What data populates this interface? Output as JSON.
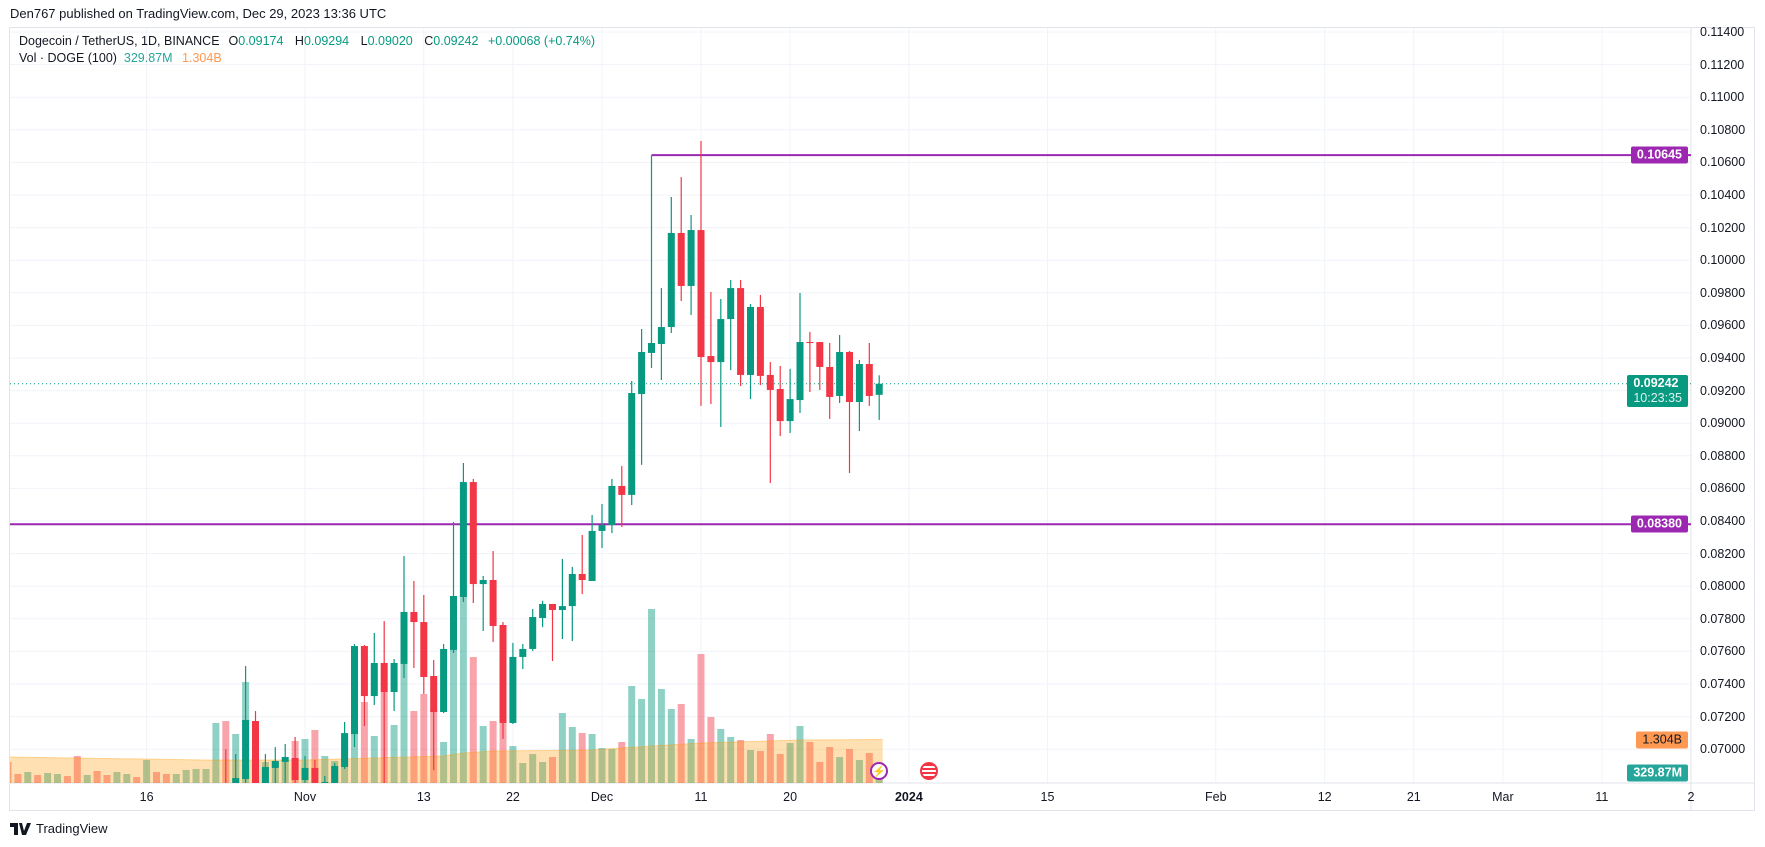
{
  "publisher_line": "Den767 published on TradingView.com, Dec 29, 2023 13:36 UTC",
  "legend": {
    "symbol": "Dogecoin / TetherUS, 1D, BINANCE",
    "o_key": "O",
    "o": "0.09174",
    "h_key": "H",
    "h": "0.09294",
    "l_key": "L",
    "l": "0.09020",
    "c_key": "C",
    "c": "0.09242",
    "change": "+0.00068 (+0.74%)",
    "vol_label": "Vol · DOGE (100)",
    "vol_value": "329.87M",
    "vol_ma_value": "1.304B"
  },
  "price_tags": {
    "high_line": "0.10645",
    "low_line": "0.08380",
    "last_price": "0.09242",
    "countdown": "10:23:35",
    "vol_ma": "1.304B",
    "vol": "329.87M"
  },
  "footer": {
    "brand": "TradingView"
  },
  "colors": {
    "up": "#089981",
    "down": "#f23645",
    "level_line": "#9c27b0",
    "vol_ma": "#ff9850",
    "grid": "#f0f3fa"
  },
  "chart_data": {
    "type": "candlestick",
    "symbol": "DOGEUSDT",
    "interval": "1D",
    "ylim": [
      0.0675,
      0.1142
    ],
    "grid": true,
    "y_ticks": [
      "0.11400",
      "0.11200",
      "0.11000",
      "0.10800",
      "0.10600",
      "0.10400",
      "0.10200",
      "0.10000",
      "0.09800",
      "0.09600",
      "0.09400",
      "0.09200",
      "0.09000",
      "0.08800",
      "0.08600",
      "0.08400",
      "0.08200",
      "0.08000",
      "0.07800",
      "0.07600",
      "0.07400",
      "0.07200",
      "0.07000"
    ],
    "x_ticks": [
      {
        "label": "16",
        "date": "2023-10-16"
      },
      {
        "label": "Nov",
        "date": "2023-11-01"
      },
      {
        "label": "13",
        "date": "2023-11-13"
      },
      {
        "label": "22",
        "date": "2023-11-22"
      },
      {
        "label": "Dec",
        "date": "2023-12-01"
      },
      {
        "label": "11",
        "date": "2023-12-11"
      },
      {
        "label": "20",
        "date": "2023-12-20"
      },
      {
        "label": "2024",
        "date": "2024-01-01",
        "bold": true
      },
      {
        "label": "15",
        "date": "2024-01-15"
      },
      {
        "label": "Feb",
        "date": "2024-02-01"
      },
      {
        "label": "12",
        "date": "2024-02-12"
      },
      {
        "label": "21",
        "date": "2024-02-21"
      },
      {
        "label": "Mar",
        "date": "2024-03-01"
      },
      {
        "label": "11",
        "date": "2024-03-11"
      },
      {
        "label": "2",
        "date": "2024-03-20"
      }
    ],
    "horizontal_levels": [
      {
        "price": 0.10645,
        "from": "2023-12-06"
      },
      {
        "price": 0.0838,
        "from": "2023-10-01"
      }
    ],
    "last_price": 0.09242,
    "candles_columns": [
      "date",
      "open",
      "high",
      "low",
      "close"
    ],
    "candles": [
      [
        "2023-10-24",
        0.0678,
        0.07,
        0.0668,
        0.0672
      ],
      [
        "2023-10-25",
        0.0672,
        0.0697,
        0.0668,
        0.06823
      ],
      [
        "2023-10-26",
        0.06817,
        0.0751,
        0.0675,
        0.07179
      ],
      [
        "2023-10-27",
        0.07173,
        0.07234,
        0.0665,
        0.0672
      ],
      [
        "2023-10-28",
        0.0672,
        0.0697,
        0.0668,
        0.06891
      ],
      [
        "2023-10-29",
        0.06885,
        0.07013,
        0.0679,
        0.06928
      ],
      [
        "2023-10-30",
        0.06922,
        0.07032,
        0.0679,
        0.06952
      ],
      [
        "2023-10-31",
        0.06946,
        0.07075,
        0.0676,
        0.06811
      ],
      [
        "2023-11-01",
        0.06811,
        0.06958,
        0.06793,
        0.06885
      ],
      [
        "2023-11-02",
        0.06885,
        0.06934,
        0.0675,
        0.06793
      ],
      [
        "2023-11-03",
        0.06793,
        0.06836,
        0.0675,
        0.06799
      ],
      [
        "2023-11-04",
        0.06793,
        0.06916,
        0.0676,
        0.06897
      ],
      [
        "2023-11-05",
        0.06891,
        0.07167,
        0.06879,
        0.07099
      ],
      [
        "2023-11-06",
        0.07093,
        0.07645,
        0.07013,
        0.07633
      ],
      [
        "2023-11-07",
        0.07633,
        0.07639,
        0.07142,
        0.07326
      ],
      [
        "2023-11-08",
        0.07326,
        0.07713,
        0.07271,
        0.07529
      ],
      [
        "2023-11-09",
        0.07529,
        0.07786,
        0.0675,
        0.07351
      ],
      [
        "2023-11-10",
        0.07351,
        0.07553,
        0.07234,
        0.07529
      ],
      [
        "2023-11-11",
        0.07523,
        0.08185,
        0.07437,
        0.07842
      ],
      [
        "2023-11-12",
        0.07842,
        0.08032,
        0.07498,
        0.0778
      ],
      [
        "2023-11-13",
        0.0778,
        0.07946,
        0.07339,
        0.07443
      ],
      [
        "2023-11-14",
        0.07449,
        0.07547,
        0.06872,
        0.07228
      ],
      [
        "2023-11-15",
        0.07228,
        0.07645,
        0.07222,
        0.07615
      ],
      [
        "2023-11-16",
        0.07609,
        0.08394,
        0.0759,
        0.0794
      ],
      [
        "2023-11-17",
        0.07934,
        0.08756,
        0.07903,
        0.08639
      ],
      [
        "2023-11-18",
        0.08639,
        0.08658,
        0.07897,
        0.08013
      ],
      [
        "2023-11-19",
        0.08013,
        0.08063,
        0.07725,
        0.08038
      ],
      [
        "2023-11-20",
        0.08038,
        0.08216,
        0.07658,
        0.07756
      ],
      [
        "2023-11-21",
        0.07762,
        0.0778,
        0.07063,
        0.07161
      ],
      [
        "2023-11-22",
        0.07161,
        0.07652,
        0.07155,
        0.07566
      ],
      [
        "2023-11-23",
        0.07566,
        0.07645,
        0.07492,
        0.07615
      ],
      [
        "2023-11-24",
        0.07615,
        0.0786,
        0.07603,
        0.07811
      ],
      [
        "2023-11-25",
        0.07805,
        0.0791,
        0.07749,
        0.07891
      ],
      [
        "2023-11-26",
        0.07891,
        0.07891,
        0.07541,
        0.07854
      ],
      [
        "2023-11-27",
        0.07854,
        0.08167,
        0.07676,
        0.07878
      ],
      [
        "2023-11-28",
        0.07878,
        0.08118,
        0.07664,
        0.08075
      ],
      [
        "2023-11-29",
        0.08075,
        0.08314,
        0.07952,
        0.08038
      ],
      [
        "2023-11-30",
        0.08032,
        0.08437,
        0.08032,
        0.08339
      ],
      [
        "2023-12-01",
        0.08339,
        0.08504,
        0.08234,
        0.08375
      ],
      [
        "2023-12-02",
        0.08375,
        0.08658,
        0.08326,
        0.08615
      ],
      [
        "2023-12-03",
        0.08615,
        0.08737,
        0.08363,
        0.0856
      ],
      [
        "2023-12-04",
        0.0856,
        0.09259,
        0.08498,
        0.09185
      ],
      [
        "2023-12-05",
        0.09179,
        0.09578,
        0.08744,
        0.09437
      ],
      [
        "2023-12-06",
        0.09431,
        0.10645,
        0.09339,
        0.09492
      ],
      [
        "2023-12-07",
        0.09486,
        0.09829,
        0.09265,
        0.0959
      ],
      [
        "2023-12-08",
        0.0959,
        0.10388,
        0.09553,
        0.10167
      ],
      [
        "2023-12-09",
        0.10167,
        0.1051,
        0.0975,
        0.09842
      ],
      [
        "2023-12-10",
        0.09842,
        0.10277,
        0.09664,
        0.10185
      ],
      [
        "2023-12-11",
        0.10185,
        0.10731,
        0.09106,
        0.09406
      ],
      [
        "2023-12-12",
        0.09412,
        0.09805,
        0.09118,
        0.09375
      ],
      [
        "2023-12-13",
        0.09375,
        0.09762,
        0.08977,
        0.09639
      ],
      [
        "2023-12-14",
        0.09639,
        0.09879,
        0.09326,
        0.09829
      ],
      [
        "2023-12-15",
        0.09829,
        0.09879,
        0.09228,
        0.09296
      ],
      [
        "2023-12-16",
        0.09296,
        0.09731,
        0.09148,
        0.09713
      ],
      [
        "2023-12-17",
        0.09713,
        0.09787,
        0.09234,
        0.0929
      ],
      [
        "2023-12-18",
        0.09296,
        0.09375,
        0.08633,
        0.09204
      ],
      [
        "2023-12-19",
        0.0921,
        0.09351,
        0.08921,
        0.09013
      ],
      [
        "2023-12-20",
        0.09013,
        0.09333,
        0.0894,
        0.09148
      ],
      [
        "2023-12-21",
        0.09142,
        0.09799,
        0.09063,
        0.09498
      ],
      [
        "2023-12-22",
        0.09498,
        0.0956,
        0.09191,
        0.09492
      ],
      [
        "2023-12-23",
        0.09498,
        0.09498,
        0.09204,
        0.09345
      ],
      [
        "2023-12-24",
        0.09345,
        0.09492,
        0.09026,
        0.09161
      ],
      [
        "2023-12-25",
        0.09167,
        0.09541,
        0.09124,
        0.09437
      ],
      [
        "2023-12-26",
        0.09437,
        0.09443,
        0.08694,
        0.0913
      ],
      [
        "2023-12-27",
        0.0913,
        0.09388,
        0.08952,
        0.09363
      ],
      [
        "2023-12-28",
        0.09363,
        0.09492,
        0.09106,
        0.09167
      ],
      [
        "2023-12-29",
        0.09174,
        0.09294,
        0.0902,
        0.09242
      ]
    ],
    "volume_unit": "M",
    "volume_columns": [
      "date",
      "volume",
      "direction"
    ],
    "volume": [
      [
        "2023-10-02",
        630,
        "down"
      ],
      [
        "2023-10-03",
        270,
        "down"
      ],
      [
        "2023-10-04",
        330,
        "up"
      ],
      [
        "2023-10-05",
        240,
        "down"
      ],
      [
        "2023-10-06",
        300,
        "up"
      ],
      [
        "2023-10-07",
        270,
        "up"
      ],
      [
        "2023-10-08",
        210,
        "down"
      ],
      [
        "2023-10-09",
        810,
        "down"
      ],
      [
        "2023-10-10",
        240,
        "up"
      ],
      [
        "2023-10-11",
        360,
        "down"
      ],
      [
        "2023-10-12",
        240,
        "down"
      ],
      [
        "2023-10-13",
        330,
        "up"
      ],
      [
        "2023-10-14",
        270,
        "up"
      ],
      [
        "2023-10-15",
        180,
        "down"
      ],
      [
        "2023-10-16",
        690,
        "up"
      ],
      [
        "2023-10-17",
        330,
        "down"
      ],
      [
        "2023-10-18",
        270,
        "down"
      ],
      [
        "2023-10-19",
        270,
        "up"
      ],
      [
        "2023-10-20",
        390,
        "up"
      ],
      [
        "2023-10-21",
        420,
        "up"
      ],
      [
        "2023-10-22",
        420,
        "up"
      ],
      [
        "2023-10-23",
        1800,
        "up"
      ],
      [
        "2023-10-24",
        1860,
        "down"
      ],
      [
        "2023-10-25",
        1470,
        "up"
      ],
      [
        "2023-10-26",
        3030,
        "up"
      ],
      [
        "2023-10-27",
        1230,
        "down"
      ],
      [
        "2023-10-28",
        630,
        "up"
      ],
      [
        "2023-10-29",
        660,
        "up"
      ],
      [
        "2023-10-30",
        690,
        "up"
      ],
      [
        "2023-10-31",
        1260,
        "down"
      ],
      [
        "2023-11-01",
        1320,
        "up"
      ],
      [
        "2023-11-02",
        1590,
        "down"
      ],
      [
        "2023-11-03",
        810,
        "up"
      ],
      [
        "2023-11-04",
        660,
        "up"
      ],
      [
        "2023-11-05",
        1380,
        "up"
      ],
      [
        "2023-11-06",
        1890,
        "up"
      ],
      [
        "2023-11-07",
        2430,
        "down"
      ],
      [
        "2023-11-08",
        1410,
        "up"
      ],
      [
        "2023-11-09",
        2730,
        "down"
      ],
      [
        "2023-11-10",
        1740,
        "up"
      ],
      [
        "2023-11-11",
        3930,
        "up"
      ],
      [
        "2023-11-12",
        2160,
        "down"
      ],
      [
        "2023-11-13",
        2670,
        "down"
      ],
      [
        "2023-11-14",
        2220,
        "down"
      ],
      [
        "2023-11-15",
        1230,
        "up"
      ],
      [
        "2023-11-16",
        4560,
        "up"
      ],
      [
        "2023-11-17",
        5640,
        "up"
      ],
      [
        "2023-11-18",
        3780,
        "down"
      ],
      [
        "2023-11-19",
        1710,
        "up"
      ],
      [
        "2023-11-20",
        1860,
        "down"
      ],
      [
        "2023-11-21",
        2760,
        "down"
      ],
      [
        "2023-11-22",
        1110,
        "up"
      ],
      [
        "2023-11-23",
        600,
        "up"
      ],
      [
        "2023-11-24",
        870,
        "up"
      ],
      [
        "2023-11-25",
        630,
        "up"
      ],
      [
        "2023-11-26",
        780,
        "down"
      ],
      [
        "2023-11-27",
        2100,
        "up"
      ],
      [
        "2023-11-28",
        1680,
        "up"
      ],
      [
        "2023-11-29",
        1500,
        "down"
      ],
      [
        "2023-11-30",
        1470,
        "up"
      ],
      [
        "2023-12-01",
        1050,
        "up"
      ],
      [
        "2023-12-02",
        1020,
        "up"
      ],
      [
        "2023-12-03",
        1230,
        "down"
      ],
      [
        "2023-12-04",
        2910,
        "up"
      ],
      [
        "2023-12-05",
        2520,
        "up"
      ],
      [
        "2023-12-06",
        5220,
        "up"
      ],
      [
        "2023-12-07",
        2820,
        "up"
      ],
      [
        "2023-12-08",
        2220,
        "up"
      ],
      [
        "2023-12-09",
        2370,
        "down"
      ],
      [
        "2023-12-10",
        1320,
        "up"
      ],
      [
        "2023-12-11",
        3870,
        "down"
      ],
      [
        "2023-12-12",
        1980,
        "down"
      ],
      [
        "2023-12-13",
        1620,
        "up"
      ],
      [
        "2023-12-14",
        1380,
        "up"
      ],
      [
        "2023-12-15",
        1290,
        "down"
      ],
      [
        "2023-12-16",
        990,
        "up"
      ],
      [
        "2023-12-17",
        960,
        "down"
      ],
      [
        "2023-12-18",
        1470,
        "down"
      ],
      [
        "2023-12-19",
        870,
        "down"
      ],
      [
        "2023-12-20",
        1200,
        "up"
      ],
      [
        "2023-12-21",
        1710,
        "up"
      ],
      [
        "2023-12-22",
        1230,
        "down"
      ],
      [
        "2023-12-23",
        630,
        "down"
      ],
      [
        "2023-12-24",
        1080,
        "down"
      ],
      [
        "2023-12-25",
        780,
        "up"
      ],
      [
        "2023-12-26",
        1020,
        "down"
      ],
      [
        "2023-12-27",
        690,
        "up"
      ],
      [
        "2023-12-28",
        900,
        "down"
      ],
      [
        "2023-12-29",
        329.87,
        "up"
      ]
    ],
    "volume_ma_period": 100,
    "volume_ma": [
      [
        "2023-10-02",
        780
      ],
      [
        "2023-10-22",
        690
      ],
      [
        "2023-11-01",
        690
      ],
      [
        "2023-11-15",
        810
      ],
      [
        "2023-11-17",
        900
      ],
      [
        "2023-11-20",
        960
      ],
      [
        "2023-11-30",
        990
      ],
      [
        "2023-12-06",
        1110
      ],
      [
        "2023-12-11",
        1200
      ],
      [
        "2023-12-21",
        1290
      ],
      [
        "2023-12-29",
        1304
      ]
    ],
    "events": [
      {
        "type": "dividend-lightning-icon",
        "date": "2023-12-29"
      },
      {
        "type": "us-flag-icon",
        "date": "2024-01-03"
      }
    ]
  }
}
